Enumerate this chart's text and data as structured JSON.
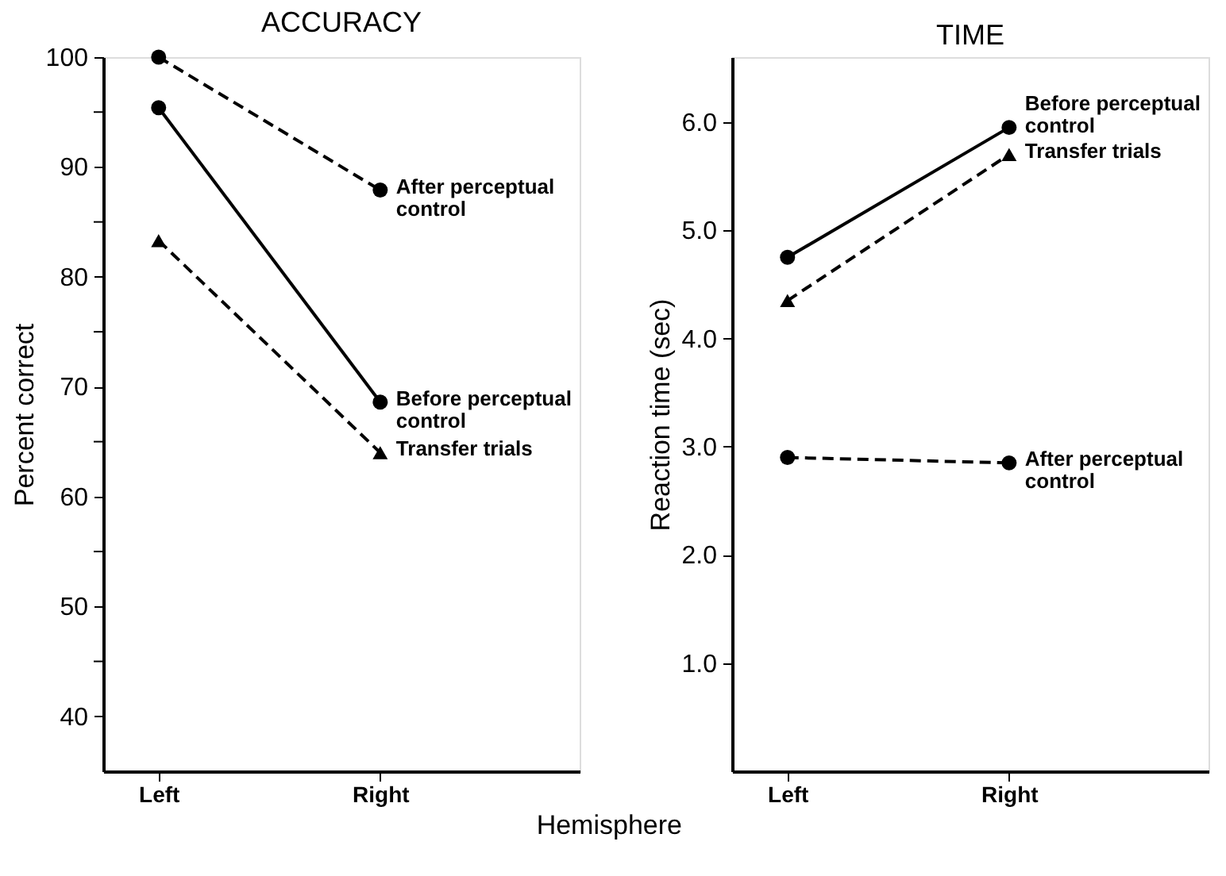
{
  "chart_data": [
    {
      "type": "line",
      "title": "ACCURACY",
      "ylabel": "Percent correct",
      "xlabel": "Hemisphere",
      "categories": [
        "Left",
        "Right"
      ],
      "series": [
        {
          "name": "After perceptual\ncontrol",
          "color": "#000000",
          "values": [
            100,
            87.9
          ],
          "marker": "circle",
          "line_style": "dashed"
        },
        {
          "name": "Before perceptual\ncontrol",
          "color": "#000000",
          "values": [
            95.4,
            68.6
          ],
          "marker": "circle",
          "line_style": "solid"
        },
        {
          "name": "Transfer trials",
          "color": "#000000",
          "values": [
            83.3,
            64
          ],
          "marker": "triangle",
          "line_style": "dashed"
        }
      ],
      "ylim": [
        35,
        100
      ],
      "yticks": [
        40,
        {
          "value": 45,
          "label": null
        },
        50,
        {
          "value": 55,
          "label": null
        },
        60,
        {
          "value": 65,
          "label": null
        },
        70,
        {
          "value": 75,
          "label": null
        },
        80,
        {
          "value": 85,
          "label": null
        },
        90,
        {
          "value": 95,
          "label": null
        },
        100
      ],
      "grid": false
    },
    {
      "type": "line",
      "title": "TIME",
      "ylabel": "Reaction time (sec)",
      "categories": [
        "Left",
        "Right"
      ],
      "series": [
        {
          "name": "Before perceptual\ncontrol",
          "color": "#000000",
          "values": [
            4.75,
            5.95
          ],
          "marker": "circle",
          "line_style": "solid"
        },
        {
          "name": "Transfer trials",
          "color": "#000000",
          "values": [
            4.35,
            5.7
          ],
          "marker": "triangle",
          "line_style": "dashed"
        },
        {
          "name": "After perceptual\ncontrol",
          "color": "#000000",
          "values": [
            2.9,
            2.85
          ],
          "marker": "circle",
          "line_style": "dashed"
        }
      ],
      "ylim": [
        0,
        6.6
      ],
      "yticks": [
        {
          "value": 1,
          "label": "1.0"
        },
        {
          "value": 2,
          "label": "2.0"
        },
        {
          "value": 3,
          "label": "3.0"
        },
        {
          "value": 4,
          "label": "4.0"
        },
        {
          "value": 5,
          "label": "5.0"
        },
        {
          "value": 6,
          "label": "6.0"
        }
      ],
      "grid": false
    }
  ]
}
